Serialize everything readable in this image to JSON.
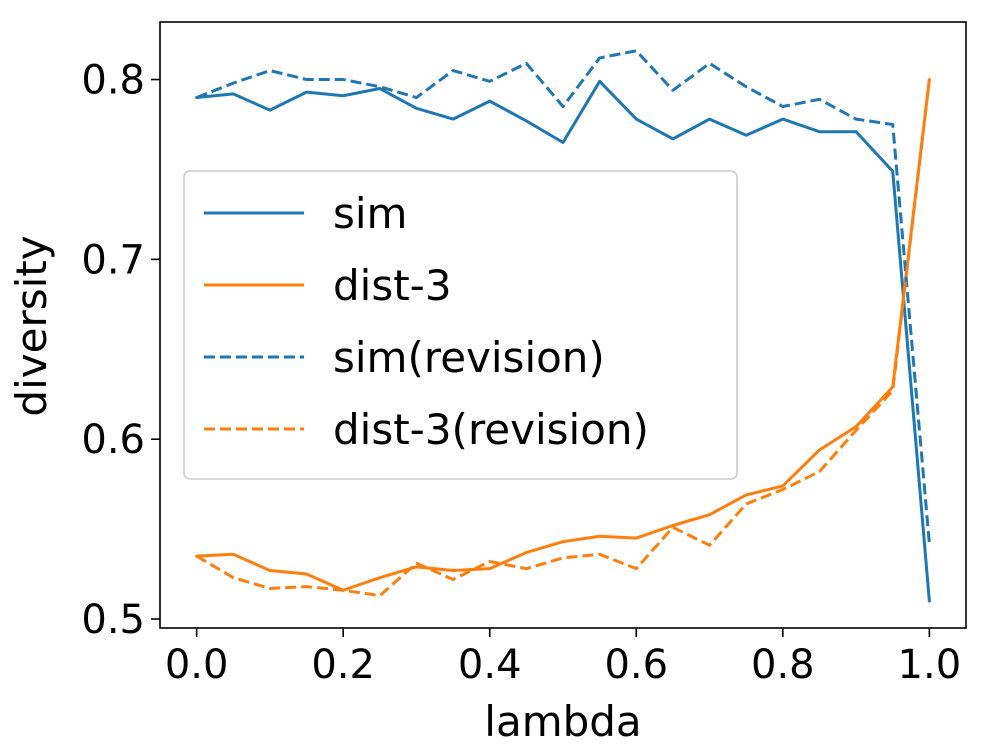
{
  "chart_data": {
    "type": "line",
    "title": "",
    "xlabel": "lambda",
    "ylabel": "diversity",
    "xlim": [
      -0.05,
      1.05
    ],
    "ylim": [
      0.495,
      0.832
    ],
    "xticks": [
      0.0,
      0.2,
      0.4,
      0.6,
      0.8,
      1.0
    ],
    "xtick_labels": [
      "0.0",
      "0.2",
      "0.4",
      "0.6",
      "0.8",
      "1.0"
    ],
    "yticks": [
      0.5,
      0.6,
      0.7,
      0.8
    ],
    "ytick_labels": [
      "0.5",
      "0.6",
      "0.7",
      "0.8"
    ],
    "grid": false,
    "legend_position": "center-left",
    "x": [
      0.0,
      0.05,
      0.1,
      0.15,
      0.2,
      0.25,
      0.3,
      0.35,
      0.4,
      0.45,
      0.5,
      0.55,
      0.6,
      0.65,
      0.7,
      0.75,
      0.8,
      0.85,
      0.9,
      0.95,
      1.0
    ],
    "series": [
      {
        "name": "sim",
        "color": "#1f77b4",
        "style": "solid",
        "values": [
          0.79,
          0.792,
          0.783,
          0.793,
          0.791,
          0.795,
          0.784,
          0.778,
          0.788,
          0.777,
          0.765,
          0.799,
          0.778,
          0.767,
          0.778,
          0.769,
          0.778,
          0.771,
          0.771,
          0.749,
          0.51
        ]
      },
      {
        "name": "dist-3",
        "color": "#ff7f0e",
        "style": "solid",
        "values": [
          0.535,
          0.536,
          0.527,
          0.525,
          0.516,
          0.523,
          0.529,
          0.527,
          0.528,
          0.537,
          0.543,
          0.546,
          0.545,
          0.552,
          0.558,
          0.569,
          0.574,
          0.594,
          0.607,
          0.629,
          0.8
        ]
      },
      {
        "name": "sim(revision)",
        "color": "#1f77b4",
        "style": "dashed",
        "values": [
          0.79,
          0.798,
          0.805,
          0.8,
          0.8,
          0.796,
          0.79,
          0.805,
          0.799,
          0.809,
          0.785,
          0.812,
          0.816,
          0.794,
          0.809,
          0.796,
          0.785,
          0.789,
          0.778,
          0.775,
          0.542
        ]
      },
      {
        "name": "dist-3(revision)",
        "color": "#ff7f0e",
        "style": "dashed",
        "values": [
          0.535,
          0.523,
          0.517,
          0.518,
          0.516,
          0.513,
          0.531,
          0.522,
          0.532,
          0.528,
          0.534,
          0.536,
          0.528,
          0.551,
          0.541,
          0.564,
          0.572,
          0.582,
          0.605,
          0.627,
          0.8
        ]
      }
    ]
  }
}
